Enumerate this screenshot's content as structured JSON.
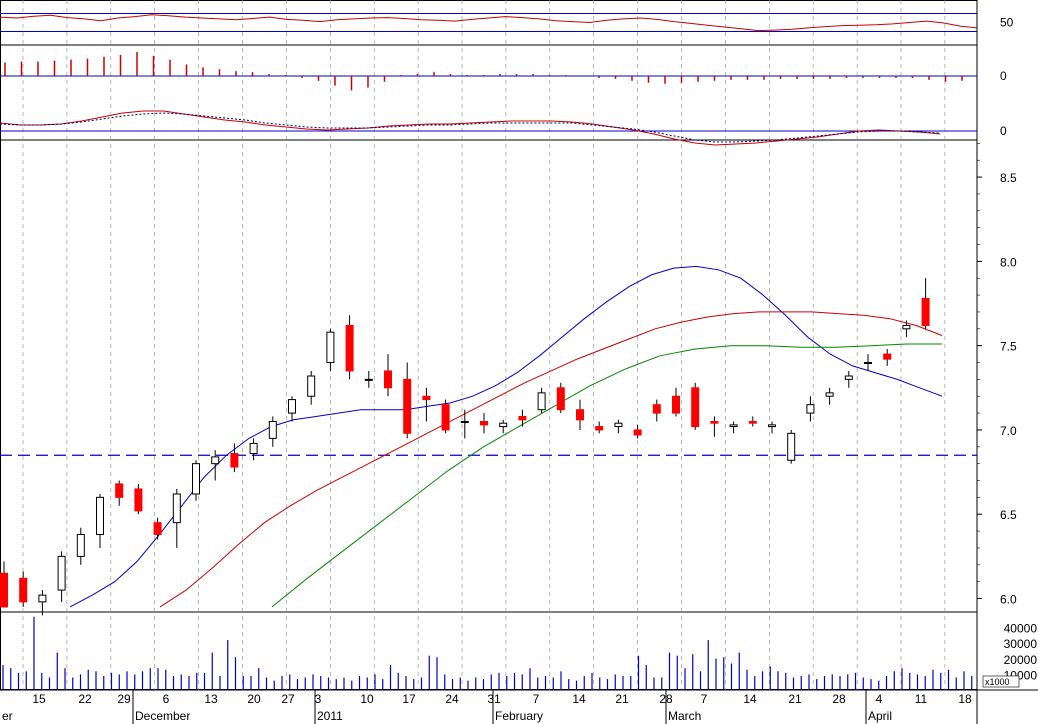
{
  "colors": {
    "up_candle": "#ffffff",
    "down_candle": "#ff0000",
    "candle_outline": "#000000",
    "ma_fast": "#0000cc",
    "ma_mid": "#cc0000",
    "ma_slow": "#008800",
    "indicator_line": "#cc0000",
    "histogram_price": "#cc0000",
    "volume_bar": "#0000cc",
    "reference_line": "#0000cc",
    "grid": "#888888"
  },
  "chart_data": [
    {
      "type": "line",
      "panel": "oscillator",
      "yticks": [
        50
      ],
      "ylim": [
        0,
        100
      ],
      "reference_levels": [
        70,
        30
      ],
      "series": [
        {
          "values": [
            62,
            60,
            64,
            66,
            61,
            58,
            54,
            60,
            63,
            67,
            65,
            62,
            60,
            58,
            56,
            59,
            62,
            57,
            55,
            52,
            56,
            58,
            60,
            61,
            59,
            56,
            55,
            53,
            57,
            60,
            63,
            61,
            58,
            54,
            52,
            50,
            55,
            58,
            60,
            57,
            52,
            48,
            44,
            40,
            36,
            32,
            33,
            35,
            38,
            41,
            43,
            44,
            45,
            47,
            50,
            53,
            49,
            42,
            38
          ]
        }
      ],
      "grid": true
    },
    {
      "type": "bar",
      "panel": "histogram",
      "yticks": [
        0
      ],
      "values": [
        0.14,
        0.15,
        0.15,
        0.16,
        0.17,
        0.18,
        0.2,
        0.22,
        0.25,
        0.21,
        0.17,
        0.12,
        0.09,
        0.07,
        0.05,
        0.04,
        0.02,
        0.01,
        -0.02,
        -0.05,
        -0.1,
        -0.15,
        -0.12,
        -0.06,
        0.01,
        0.02,
        0.04,
        0.02,
        0.01,
        0.01,
        0.02,
        0.02,
        0.02,
        0.01,
        0.01,
        0,
        -0.02,
        -0.03,
        -0.05,
        -0.07,
        -0.08,
        -0.07,
        -0.06,
        -0.05,
        -0.04,
        -0.04,
        -0.04,
        -0.03,
        -0.03,
        -0.03,
        -0.03,
        -0.02,
        -0.02,
        -0.02,
        -0.02,
        -0.02,
        -0.04,
        -0.06,
        -0.05
      ],
      "grid": true
    },
    {
      "type": "line",
      "panel": "macd",
      "yticks": [
        0
      ],
      "series": [
        {
          "values": [
            0.08,
            0.06,
            0.06,
            0.07,
            0.1,
            0.14,
            0.18,
            0.2,
            0.2,
            0.17,
            0.14,
            0.11,
            0.09,
            0.06,
            0.04,
            0.02,
            0.01,
            0.02,
            0.03,
            0.05,
            0.06,
            0.07,
            0.07,
            0.08,
            0.09,
            0.1,
            0.1,
            0.1,
            0.09,
            0.07,
            0.04,
            0.01,
            -0.03,
            -0.08,
            -0.12,
            -0.14,
            -0.13,
            -0.12,
            -0.1,
            -0.08,
            -0.06,
            -0.03,
            0,
            0.01,
            0,
            -0.01,
            -0.03
          ]
        },
        {
          "values": [
            0.07,
            0.06,
            0.06,
            0.07,
            0.09,
            0.12,
            0.15,
            0.17,
            0.18,
            0.17,
            0.15,
            0.13,
            0.11,
            0.08,
            0.06,
            0.04,
            0.03,
            0.03,
            0.03,
            0.04,
            0.05,
            0.06,
            0.06,
            0.07,
            0.08,
            0.08,
            0.08,
            0.08,
            0.08,
            0.06,
            0.04,
            0.02,
            -0.01,
            -0.05,
            -0.09,
            -0.11,
            -0.11,
            -0.1,
            -0.09,
            -0.07,
            -0.05,
            -0.03,
            -0.01,
            0,
            0,
            -0.01,
            -0.02
          ]
        }
      ],
      "grid": true
    },
    {
      "type": "candlestick",
      "panel": "price",
      "yticks": [
        6.0,
        6.5,
        7.0,
        7.5,
        8.0,
        8.5
      ],
      "ylim": [
        5.92,
        8.72
      ],
      "reference_levels": [
        6.85
      ],
      "ohlc": [
        [
          6.15,
          6.22,
          5.95,
          5.95
        ],
        [
          6.12,
          6.16,
          5.95,
          5.98
        ],
        [
          5.98,
          6.05,
          5.9,
          6.02
        ],
        [
          6.05,
          6.28,
          5.98,
          6.25
        ],
        [
          6.25,
          6.42,
          6.2,
          6.38
        ],
        [
          6.38,
          6.62,
          6.3,
          6.6
        ],
        [
          6.68,
          6.7,
          6.55,
          6.6
        ],
        [
          6.65,
          6.68,
          6.5,
          6.52
        ],
        [
          6.45,
          6.48,
          6.35,
          6.38
        ],
        [
          6.45,
          6.65,
          6.3,
          6.62
        ],
        [
          6.62,
          6.82,
          6.58,
          6.8
        ],
        [
          6.8,
          6.88,
          6.7,
          6.84
        ],
        [
          6.86,
          6.92,
          6.75,
          6.78
        ],
        [
          6.86,
          6.95,
          6.82,
          6.92
        ],
        [
          6.95,
          7.08,
          6.9,
          7.05
        ],
        [
          7.1,
          7.2,
          7.05,
          7.18
        ],
        [
          7.2,
          7.35,
          7.15,
          7.32
        ],
        [
          7.4,
          7.6,
          7.35,
          7.58
        ],
        [
          7.62,
          7.68,
          7.3,
          7.35
        ],
        [
          7.3,
          7.35,
          7.25,
          7.3
        ],
        [
          7.35,
          7.45,
          7.2,
          7.25
        ],
        [
          7.3,
          7.4,
          6.95,
          6.98
        ],
        [
          7.2,
          7.25,
          7.05,
          7.18
        ],
        [
          7.15,
          7.18,
          6.98,
          7.0
        ],
        [
          7.05,
          7.12,
          6.95,
          7.05
        ],
        [
          7.05,
          7.1,
          6.98,
          7.03
        ],
        [
          7.02,
          7.06,
          6.98,
          7.04
        ],
        [
          7.08,
          7.12,
          7.02,
          7.06
        ],
        [
          7.12,
          7.25,
          7.1,
          7.22
        ],
        [
          7.25,
          7.28,
          7.1,
          7.12
        ],
        [
          7.12,
          7.18,
          7.0,
          7.06
        ],
        [
          7.02,
          7.05,
          6.98,
          7.0
        ],
        [
          7.02,
          7.06,
          6.98,
          7.04
        ],
        [
          7.0,
          7.03,
          6.95,
          6.97
        ],
        [
          7.15,
          7.18,
          7.05,
          7.1
        ],
        [
          7.2,
          7.25,
          7.08,
          7.1
        ],
        [
          7.25,
          7.28,
          7.0,
          7.02
        ],
        [
          7.05,
          7.08,
          6.96,
          7.04
        ],
        [
          7.02,
          7.05,
          6.98,
          7.03
        ],
        [
          7.05,
          7.08,
          7.02,
          7.04
        ],
        [
          7.02,
          7.05,
          6.98,
          7.03
        ],
        [
          6.82,
          7.0,
          6.8,
          6.98
        ],
        [
          7.1,
          7.2,
          7.05,
          7.15
        ],
        [
          7.2,
          7.25,
          7.15,
          7.22
        ],
        [
          7.3,
          7.35,
          7.25,
          7.32
        ],
        [
          7.4,
          7.45,
          7.35,
          7.4
        ],
        [
          7.45,
          7.48,
          7.38,
          7.42
        ],
        [
          7.6,
          7.65,
          7.55,
          7.62
        ],
        [
          7.78,
          7.9,
          7.6,
          7.62
        ]
      ],
      "overlays": [
        {
          "values": [
            5.95,
            6.02,
            6.1,
            6.22,
            6.38,
            6.55,
            6.72,
            6.85,
            6.95,
            7.02,
            7.06,
            7.08,
            7.1,
            7.12,
            7.12,
            7.12,
            7.14,
            7.16,
            7.2,
            7.26,
            7.34,
            7.44,
            7.55,
            7.66,
            7.76,
            7.85,
            7.92,
            7.96,
            7.97,
            7.95,
            7.9,
            7.8,
            7.68,
            7.55,
            7.45,
            7.38,
            7.34,
            7.3,
            7.25,
            7.2
          ]
        },
        {
          "values": [
            5.95,
            6.05,
            6.18,
            6.32,
            6.45,
            6.55,
            6.64,
            6.72,
            6.8,
            6.88,
            6.96,
            7.04,
            7.12,
            7.2,
            7.28,
            7.35,
            7.42,
            7.48,
            7.54,
            7.6,
            7.64,
            7.67,
            7.69,
            7.7,
            7.7,
            7.7,
            7.69,
            7.68,
            7.66,
            7.62,
            7.56
          ]
        },
        {
          "values": [
            5.95,
            6.12,
            6.28,
            6.44,
            6.6,
            6.76,
            6.9,
            7.02,
            7.14,
            7.26,
            7.36,
            7.44,
            7.48,
            7.5,
            7.5,
            7.49,
            7.49,
            7.5,
            7.51,
            7.51
          ]
        }
      ],
      "grid": true
    },
    {
      "type": "bar",
      "panel": "volume",
      "yticks": [
        "40000",
        "30000",
        "20000",
        "10000"
      ],
      "unit_label": "x1000",
      "values": [
        16000,
        14000,
        11000,
        12000,
        47000,
        11000,
        8000,
        24000,
        14000,
        8000,
        10000,
        13000,
        12000,
        9000,
        11000,
        10000,
        12000,
        10000,
        12000,
        14000,
        14000,
        13000,
        9000,
        10000,
        9000,
        11000,
        11000,
        24000,
        9000,
        32000,
        21000,
        9000,
        9000,
        14000,
        8000,
        6000,
        9000,
        10000,
        7000,
        8000,
        10000,
        9000,
        8000,
        7000,
        8000,
        6000,
        9000,
        8000,
        10000,
        7000,
        16000,
        11000,
        9000,
        7000,
        8000,
        22000,
        21000,
        10000,
        7000,
        8000,
        6000,
        8000,
        7000,
        10000,
        11000,
        9000,
        11000,
        10000,
        14000,
        8000,
        9000,
        8000,
        12000,
        7000,
        6000,
        9000,
        11000,
        8000,
        7000,
        10000,
        9000,
        9000,
        22000,
        16000,
        8000,
        8000,
        24000,
        22000,
        14000,
        23000,
        12000,
        32000,
        20000,
        21000,
        17000,
        24000,
        13000,
        9000,
        12000,
        15000,
        12000,
        11000,
        8000,
        9000,
        10000,
        7000,
        9000,
        10000,
        9000,
        10000,
        11000,
        8000,
        7000,
        6000,
        9000,
        12000,
        14000,
        11000,
        10000,
        9000,
        13000,
        11000,
        13000,
        8000,
        12000,
        9000
      ],
      "grid": true
    }
  ],
  "x_axis": {
    "day_ticks": [
      "15",
      "22",
      "29",
      "6",
      "13",
      "20",
      "27",
      "3",
      "10",
      "17",
      "24",
      "31",
      "7",
      "14",
      "21",
      "28",
      "7",
      "14",
      "21",
      "28",
      "4",
      "11",
      "18"
    ],
    "month_labels": [
      "er",
      "December",
      "2011",
      "February",
      "March",
      "April"
    ]
  }
}
